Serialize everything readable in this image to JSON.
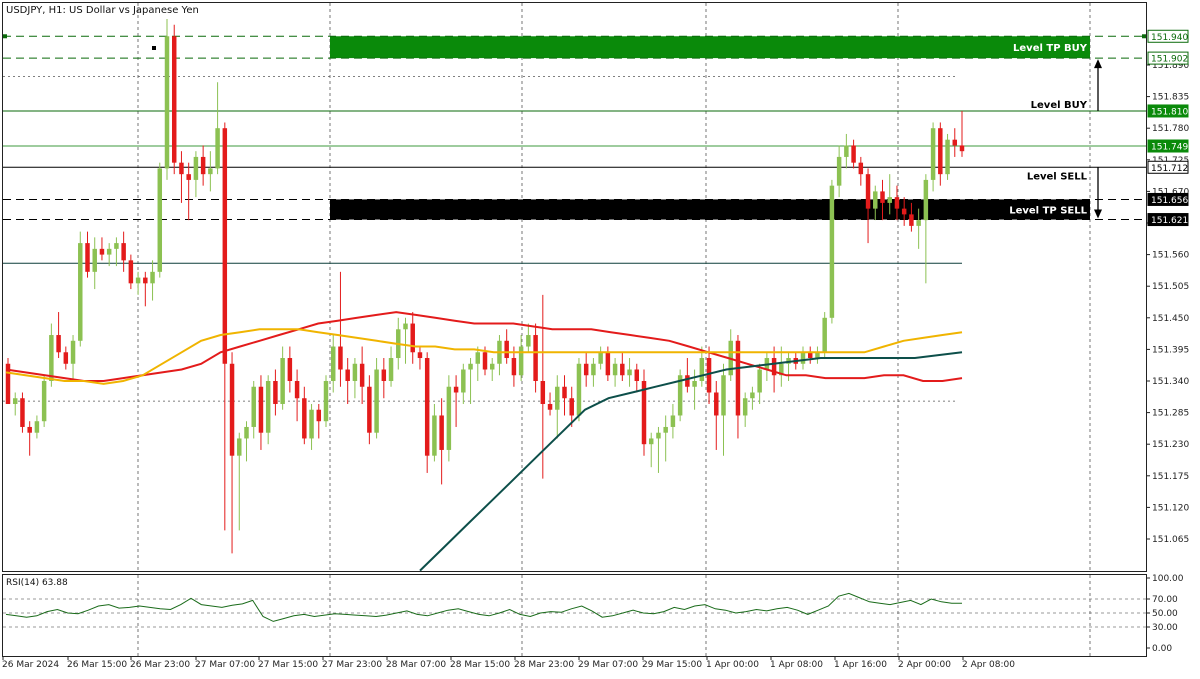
{
  "header": {
    "title": "USDJPY, H1:  US Dollar vs Japanese Yen",
    "rsi_label": "RSI(14) 63.88"
  },
  "colors": {
    "bull": "#8cc152",
    "bear": "#e31b1b",
    "ma_fast": "#e31b1b",
    "ma_mid": "#f0b400",
    "ma_slow": "#0d4f4a",
    "rsi": "#1a6b1a",
    "buy_zone": "#0a8a0a",
    "sell_zone": "#000000"
  },
  "chart_data": [
    {
      "type": "candlestick",
      "symbol": "USDJPY",
      "timeframe": "H1",
      "ylim": [
        151.01,
        151.99
      ],
      "y_ticks": [
        "151.890",
        "151.835",
        "151.780",
        "151.725",
        "151.670",
        "151.615",
        "151.560",
        "151.505",
        "151.450",
        "151.395",
        "151.340",
        "151.285",
        "151.230",
        "151.175",
        "151.120",
        "151.065"
      ],
      "x_ticks": [
        "26 Mar 2024",
        "26 Mar 15:00",
        "26 Mar 23:00",
        "27 Mar 07:00",
        "27 Mar 15:00",
        "27 Mar 23:00",
        "28 Mar 07:00",
        "28 Mar 15:00",
        "28 Mar 23:00",
        "29 Mar 07:00",
        "29 Mar 15:00",
        "1 Apr 00:00",
        "1 Apr 08:00",
        "1 Apr 16:00",
        "2 Apr 00:00",
        "2 Apr 08:00"
      ],
      "price_labels": [
        {
          "value": "151.940",
          "style": "green-outline"
        },
        {
          "value": "151.902",
          "style": "green-outline"
        },
        {
          "value": "151.810",
          "style": "green-fill"
        },
        {
          "value": "151.749",
          "style": "green-fill"
        },
        {
          "value": "151.712",
          "style": "black-outline"
        },
        {
          "value": "151.656",
          "style": "black-fill"
        },
        {
          "value": "151.621",
          "style": "black-fill"
        }
      ],
      "levels": [
        {
          "label": "Level TP BUY",
          "y_top": 151.94,
          "y_bottom": 151.902,
          "kind": "buy-zone"
        },
        {
          "label": "Level BUY",
          "y": 151.81,
          "kind": "buy"
        },
        {
          "label": "Level SELL",
          "y": 151.712,
          "kind": "sell"
        },
        {
          "label": "Level TP SELL",
          "y_top": 151.656,
          "y_bottom": 151.621,
          "kind": "sell-zone"
        }
      ],
      "extra_lines": [
        {
          "y": 151.749,
          "style": "green"
        },
        {
          "y": 151.545,
          "style": "dark"
        },
        {
          "y": 151.87,
          "style": "dotted"
        },
        {
          "y": 151.305,
          "style": "dotted"
        }
      ],
      "candles": [
        [
          151.37,
          151.38,
          151.3,
          151.3
        ],
        [
          151.3,
          151.32,
          151.28,
          151.31
        ],
        [
          151.31,
          151.32,
          151.25,
          151.26
        ],
        [
          151.26,
          151.27,
          151.21,
          151.25
        ],
        [
          151.25,
          151.28,
          151.24,
          151.27
        ],
        [
          151.27,
          151.35,
          151.26,
          151.34
        ],
        [
          151.34,
          151.44,
          151.33,
          151.42
        ],
        [
          151.42,
          151.46,
          151.38,
          151.39
        ],
        [
          151.39,
          151.4,
          151.36,
          151.37
        ],
        [
          151.37,
          151.42,
          151.34,
          151.41
        ],
        [
          151.41,
          151.6,
          151.4,
          151.58
        ],
        [
          151.58,
          151.6,
          151.52,
          151.53
        ],
        [
          151.53,
          151.59,
          151.5,
          151.57
        ],
        [
          151.57,
          151.59,
          151.55,
          151.56
        ],
        [
          151.56,
          151.58,
          151.54,
          151.57
        ],
        [
          151.57,
          151.59,
          151.54,
          151.58
        ],
        [
          151.58,
          151.6,
          151.53,
          151.55
        ],
        [
          151.55,
          151.56,
          151.5,
          151.51
        ],
        [
          151.51,
          151.53,
          151.49,
          151.52
        ],
        [
          151.52,
          151.53,
          151.47,
          151.51
        ],
        [
          151.51,
          151.55,
          151.48,
          151.53
        ],
        [
          151.53,
          151.72,
          151.52,
          151.71
        ],
        [
          151.71,
          151.97,
          151.69,
          151.94
        ],
        [
          151.94,
          151.96,
          151.7,
          151.72
        ],
        [
          151.72,
          151.74,
          151.65,
          151.7
        ],
        [
          151.7,
          151.72,
          151.62,
          151.69
        ],
        [
          151.69,
          151.74,
          151.66,
          151.73
        ],
        [
          151.73,
          151.75,
          151.68,
          151.7
        ],
        [
          151.7,
          151.74,
          151.67,
          151.71
        ],
        [
          151.71,
          151.86,
          151.7,
          151.78
        ],
        [
          151.78,
          151.79,
          151.08,
          151.37
        ],
        [
          151.37,
          151.39,
          151.04,
          151.21
        ],
        [
          151.21,
          151.25,
          151.08,
          151.24
        ],
        [
          151.24,
          151.27,
          151.2,
          151.26
        ],
        [
          151.26,
          151.34,
          151.24,
          151.33
        ],
        [
          151.33,
          151.35,
          151.22,
          151.25
        ],
        [
          151.25,
          151.35,
          151.23,
          151.34
        ],
        [
          151.34,
          151.36,
          151.28,
          151.3
        ],
        [
          151.3,
          151.4,
          151.29,
          151.38
        ],
        [
          151.38,
          151.4,
          151.32,
          151.34
        ],
        [
          151.34,
          151.36,
          151.27,
          151.31
        ],
        [
          151.31,
          151.33,
          151.23,
          151.24
        ],
        [
          151.24,
          151.3,
          151.22,
          151.29
        ],
        [
          151.29,
          151.3,
          151.24,
          151.27
        ],
        [
          151.27,
          151.35,
          151.26,
          151.34
        ],
        [
          151.34,
          151.42,
          151.32,
          151.4
        ],
        [
          151.4,
          151.53,
          151.33,
          151.36
        ],
        [
          151.36,
          151.38,
          151.3,
          151.34
        ],
        [
          151.34,
          151.38,
          151.31,
          151.37
        ],
        [
          151.37,
          151.4,
          151.3,
          151.33
        ],
        [
          151.33,
          151.35,
          151.23,
          151.25
        ],
        [
          151.25,
          151.38,
          151.24,
          151.36
        ],
        [
          151.36,
          151.38,
          151.31,
          151.34
        ],
        [
          151.34,
          151.4,
          151.33,
          151.38
        ],
        [
          151.38,
          151.45,
          151.36,
          151.43
        ],
        [
          151.43,
          151.45,
          151.37,
          151.44
        ],
        [
          151.44,
          151.46,
          151.37,
          151.39
        ],
        [
          151.39,
          151.4,
          151.36,
          151.38
        ],
        [
          151.38,
          151.39,
          151.18,
          151.21
        ],
        [
          151.21,
          151.3,
          151.2,
          151.28
        ],
        [
          151.28,
          151.31,
          151.16,
          151.22
        ],
        [
          151.22,
          151.35,
          151.2,
          151.33
        ],
        [
          151.33,
          151.35,
          151.26,
          151.32
        ],
        [
          151.32,
          151.37,
          151.3,
          151.36
        ],
        [
          151.36,
          151.38,
          151.3,
          151.37
        ],
        [
          151.37,
          151.4,
          151.34,
          151.39
        ],
        [
          151.39,
          151.4,
          151.35,
          151.36
        ],
        [
          151.36,
          151.38,
          151.34,
          151.37
        ],
        [
          151.37,
          151.42,
          151.35,
          151.41
        ],
        [
          151.41,
          151.43,
          151.37,
          151.38
        ],
        [
          151.38,
          151.4,
          151.33,
          151.35
        ],
        [
          151.35,
          151.42,
          151.34,
          151.4
        ],
        [
          151.4,
          151.44,
          151.39,
          151.42
        ],
        [
          151.42,
          151.44,
          151.32,
          151.34
        ],
        [
          151.34,
          151.49,
          151.17,
          151.3
        ],
        [
          151.3,
          151.32,
          151.28,
          151.29
        ],
        [
          151.29,
          151.35,
          151.24,
          151.33
        ],
        [
          151.33,
          151.35,
          151.28,
          151.31
        ],
        [
          151.31,
          151.33,
          151.26,
          151.28
        ],
        [
          151.28,
          151.38,
          151.27,
          151.37
        ],
        [
          151.37,
          151.39,
          151.33,
          151.35
        ],
        [
          151.35,
          151.38,
          151.33,
          151.37
        ],
        [
          151.37,
          151.4,
          151.36,
          151.39
        ],
        [
          151.39,
          151.4,
          151.34,
          151.35
        ],
        [
          151.35,
          151.38,
          151.33,
          151.37
        ],
        [
          151.37,
          151.39,
          151.34,
          151.35
        ],
        [
          151.35,
          151.38,
          151.33,
          151.36
        ],
        [
          151.36,
          151.37,
          151.32,
          151.34
        ],
        [
          151.34,
          151.36,
          151.21,
          151.23
        ],
        [
          151.23,
          151.25,
          151.19,
          151.24
        ],
        [
          151.24,
          151.26,
          151.18,
          151.25
        ],
        [
          151.25,
          151.28,
          151.2,
          151.26
        ],
        [
          151.26,
          151.3,
          151.24,
          151.28
        ],
        [
          151.28,
          151.36,
          151.27,
          151.35
        ],
        [
          151.35,
          151.38,
          151.32,
          151.33
        ],
        [
          151.33,
          151.36,
          151.29,
          151.34
        ],
        [
          151.34,
          151.4,
          151.33,
          151.38
        ],
        [
          151.38,
          151.4,
          151.3,
          151.32
        ],
        [
          151.32,
          151.34,
          151.22,
          151.28
        ],
        [
          151.28,
          151.37,
          151.21,
          151.35
        ],
        [
          151.35,
          151.43,
          151.34,
          151.41
        ],
        [
          151.41,
          151.42,
          151.24,
          151.28
        ],
        [
          151.28,
          151.32,
          151.26,
          151.31
        ],
        [
          151.31,
          151.33,
          151.29,
          151.32
        ],
        [
          151.32,
          151.37,
          151.3,
          151.36
        ],
        [
          151.36,
          151.39,
          151.34,
          151.38
        ],
        [
          151.38,
          151.4,
          151.32,
          151.35
        ],
        [
          151.35,
          151.4,
          151.33,
          151.37
        ],
        [
          151.37,
          151.39,
          151.34,
          151.38
        ],
        [
          151.38,
          151.39,
          151.36,
          151.37
        ],
        [
          151.37,
          151.4,
          151.36,
          151.39
        ],
        [
          151.39,
          151.4,
          151.37,
          151.38
        ],
        [
          151.38,
          151.4,
          151.37,
          151.39
        ],
        [
          151.39,
          151.46,
          151.38,
          151.45
        ],
        [
          151.45,
          151.69,
          151.44,
          151.68
        ],
        [
          151.68,
          151.75,
          151.66,
          151.73
        ],
        [
          151.73,
          151.77,
          151.71,
          151.75
        ],
        [
          151.75,
          151.76,
          151.71,
          151.72
        ],
        [
          151.72,
          151.73,
          151.68,
          151.7
        ],
        [
          151.7,
          151.71,
          151.58,
          151.64
        ],
        [
          151.64,
          151.68,
          151.62,
          151.67
        ],
        [
          151.67,
          151.69,
          151.62,
          151.65
        ],
        [
          151.65,
          151.7,
          151.63,
          151.66
        ],
        [
          151.66,
          151.68,
          151.62,
          151.64
        ],
        [
          151.64,
          151.66,
          151.61,
          151.63
        ],
        [
          151.63,
          151.65,
          151.6,
          151.61
        ],
        [
          151.61,
          151.64,
          151.57,
          151.62
        ],
        [
          151.62,
          151.7,
          151.51,
          151.69
        ],
        [
          151.69,
          151.79,
          151.67,
          151.78
        ],
        [
          151.78,
          151.79,
          151.68,
          151.7
        ],
        [
          151.7,
          151.77,
          151.69,
          151.76
        ],
        [
          151.76,
          151.78,
          151.73,
          151.75
        ],
        [
          151.75,
          151.81,
          151.73,
          151.74
        ]
      ],
      "ma_fast": [
        151.36,
        151.355,
        151.35,
        151.345,
        151.34,
        151.34,
        151.345,
        151.35,
        151.355,
        151.36,
        151.37,
        151.39,
        151.4,
        151.41,
        151.42,
        151.43,
        151.44,
        151.445,
        151.45,
        151.455,
        151.46,
        151.455,
        151.45,
        151.445,
        151.44,
        151.44,
        151.44,
        151.435,
        151.43,
        151.43,
        151.43,
        151.425,
        151.42,
        151.415,
        151.41,
        151.4,
        151.39,
        151.38,
        151.37,
        151.36,
        151.35,
        151.35,
        151.345,
        151.345,
        151.345,
        151.35,
        151.35,
        151.34,
        151.34,
        151.345
      ],
      "ma_mid": [
        151.355,
        151.35,
        151.345,
        151.34,
        151.34,
        151.335,
        151.34,
        151.35,
        151.37,
        151.39,
        151.41,
        151.42,
        151.425,
        151.43,
        151.43,
        151.43,
        151.425,
        151.42,
        151.415,
        151.41,
        151.405,
        151.4,
        151.4,
        151.395,
        151.395,
        151.39,
        151.39,
        151.39,
        151.39,
        151.39,
        151.39,
        151.39,
        151.39,
        151.39,
        151.39,
        151.39,
        151.39,
        151.39,
        151.39,
        151.39,
        151.39,
        151.39,
        151.39,
        151.39,
        151.39,
        151.4,
        151.41,
        151.415,
        151.42,
        151.425
      ],
      "ma_slow": [
        151.01,
        151.05,
        151.09,
        151.13,
        151.17,
        151.21,
        151.25,
        151.29,
        151.31,
        151.32,
        151.33,
        151.34,
        151.35,
        151.36,
        151.365,
        151.37,
        151.375,
        151.38,
        151.38,
        151.38,
        151.38,
        151.38,
        151.385,
        151.39
      ],
      "rsi_ticks": [
        "100.00",
        "70.00",
        "50.00",
        "30.00",
        "0.00"
      ],
      "rsi_ylim": [
        0,
        100
      ],
      "rsi_values": [
        48,
        46,
        44,
        46,
        52,
        55,
        50,
        49,
        54,
        60,
        62,
        57,
        58,
        60,
        58,
        56,
        55,
        62,
        71,
        62,
        60,
        58,
        61,
        63,
        68,
        45,
        38,
        42,
        46,
        48,
        45,
        47,
        49,
        48,
        47,
        46,
        45,
        47,
        50,
        53,
        48,
        46,
        50,
        54,
        56,
        52,
        48,
        46,
        50,
        55,
        48,
        45,
        50,
        52,
        51,
        56,
        60,
        53,
        44,
        46,
        50,
        54,
        50,
        49,
        52,
        58,
        55,
        60,
        62,
        56,
        54,
        50,
        52,
        55,
        53,
        56,
        58,
        54,
        48,
        54,
        60,
        74,
        78,
        72,
        66,
        64,
        62,
        65,
        68,
        62,
        70,
        66,
        64,
        63.88
      ]
    }
  ]
}
